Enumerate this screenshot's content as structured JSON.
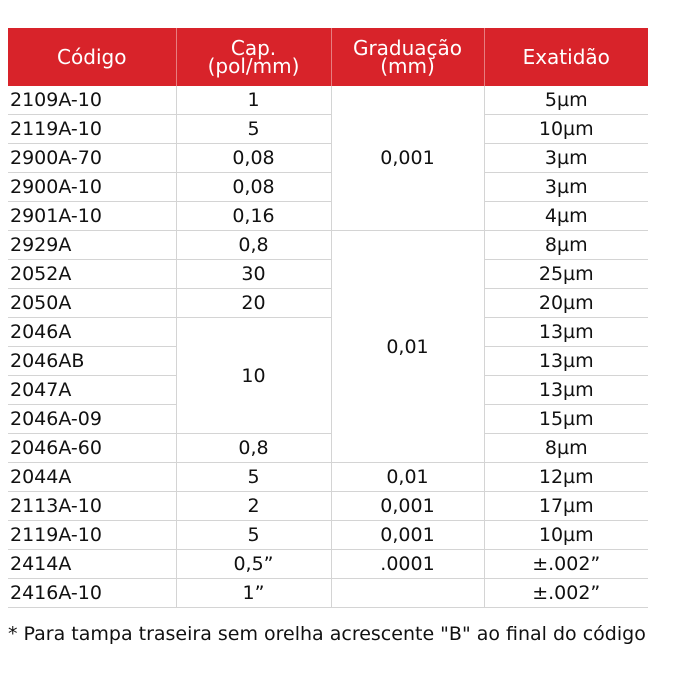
{
  "table": {
    "headers": [
      "Código",
      "Cap.\n(pol/mm)",
      "Graduação\n(mm)",
      "Exatidão"
    ],
    "rows": [
      {
        "codigo": "2109A-10",
        "cap": "1",
        "grad": "0,001",
        "exat": "5µm"
      },
      {
        "codigo": "2119A-10",
        "cap": "5",
        "grad": "0,001",
        "exat": "10µm"
      },
      {
        "codigo": "2900A-70",
        "cap": "0,08",
        "grad": "0,001",
        "exat": "3µm"
      },
      {
        "codigo": "2900A-10",
        "cap": "0,08",
        "grad": "0,001",
        "exat": "3µm"
      },
      {
        "codigo": "2901A-10",
        "cap": "0,16",
        "grad": "0,001",
        "exat": "4µm"
      },
      {
        "codigo": "2929A",
        "cap": "0,8",
        "grad": "0,01",
        "exat": "8µm"
      },
      {
        "codigo": "2052A",
        "cap": "30",
        "grad": "0,01",
        "exat": "25µm"
      },
      {
        "codigo": "2050A",
        "cap": "20",
        "grad": "0,01",
        "exat": "20µm"
      },
      {
        "codigo": "2046A",
        "cap": "10",
        "grad": "0,01",
        "exat": "13µm"
      },
      {
        "codigo": "2046AB",
        "cap": "10",
        "grad": "0,01",
        "exat": "13µm"
      },
      {
        "codigo": "2047A",
        "cap": "10",
        "grad": "0,01",
        "exat": "13µm"
      },
      {
        "codigo": "2046A-09",
        "cap": "10",
        "grad": "0,01",
        "exat": "15µm"
      },
      {
        "codigo": "2046A-60",
        "cap": "0,8",
        "grad": "0,01",
        "exat": "8µm"
      },
      {
        "codigo": "2044A",
        "cap": "5",
        "grad": "0,01",
        "exat": "12µm"
      },
      {
        "codigo": "2113A-10",
        "cap": "2",
        "grad": "0,001",
        "exat": "17µm"
      },
      {
        "codigo": "2119A-10",
        "cap": "5",
        "grad": "0,001",
        "exat": "10µm"
      },
      {
        "codigo": "2414A",
        "cap": "0,5”",
        "grad": ".0001",
        "exat": "±.002”"
      },
      {
        "codigo": "2416A-10",
        "cap": "1”",
        "grad": "",
        "exat": "±.002”"
      }
    ]
  },
  "footnote": "* Para tampa traseira sem orelha acrescente \"B\" ao final do código"
}
